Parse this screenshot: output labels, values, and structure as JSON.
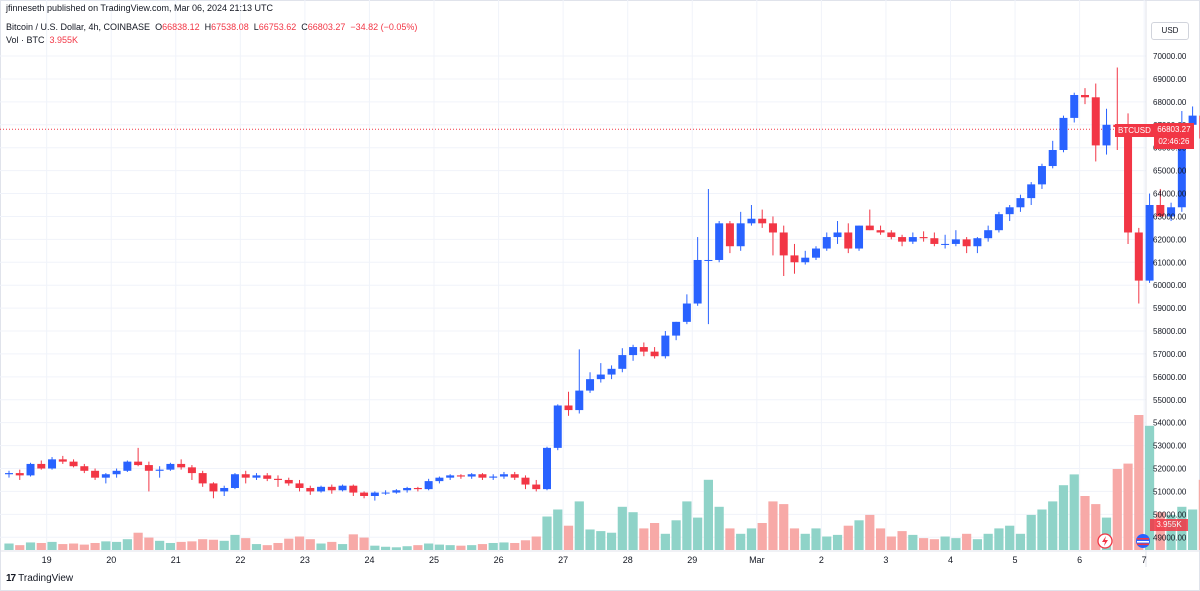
{
  "header": {
    "publisher": "jfinneseth published on TradingView.com, Mar 06, 2024 21:13 UTC",
    "symbol_line": "Bitcoin / U.S. Dollar, 4h, COINBASE",
    "open_label": "O",
    "open": "66838.12",
    "high_label": "H",
    "high": "67538.08",
    "low_label": "L",
    "low": "66753.62",
    "close_label": "C",
    "close": "66803.27",
    "change": "−34.82 (−0.05%)",
    "vol_label": "Vol · BTC",
    "vol_value": "3.955K"
  },
  "currency_button": "USD",
  "price_tag": {
    "symbol": "BTCUSD",
    "price": "66803.27",
    "countdown": "02:46:26"
  },
  "volume_tag": "3.955K",
  "footer": {
    "brand": "TradingView"
  },
  "colors": {
    "up": "#2962ff",
    "down": "#f23645",
    "vol_up": "#8fd3c8",
    "vol_down": "#f7a9a7"
  },
  "chart_data": {
    "type": "candlestick",
    "interval": "4h",
    "ylim": [
      48400,
      70700
    ],
    "y_ticks": [
      49000,
      50000,
      51000,
      52000,
      53000,
      54000,
      55000,
      56000,
      57000,
      58000,
      59000,
      60000,
      61000,
      62000,
      63000,
      64000,
      65000,
      66000,
      67000,
      68000,
      69000,
      70000
    ],
    "y_tick_labels": [
      "49000.00",
      "50000.00",
      "51000.00",
      "52000.00",
      "53000.00",
      "54000.00",
      "55000.00",
      "56000.00",
      "57000.00",
      "58000.00",
      "59000.00",
      "60000.00",
      "61000.00",
      "62000.00",
      "63000.00",
      "64000.00",
      "65000.00",
      "66000.00",
      "67000.00",
      "68000.00",
      "69000.00",
      "70000.00"
    ],
    "x_labels": [
      {
        "label": "19",
        "bar": 3.5
      },
      {
        "label": "20",
        "bar": 9.5
      },
      {
        "label": "21",
        "bar": 15.5
      },
      {
        "label": "22",
        "bar": 21.5
      },
      {
        "label": "23",
        "bar": 27.5
      },
      {
        "label": "24",
        "bar": 33.5
      },
      {
        "label": "25",
        "bar": 39.5
      },
      {
        "label": "26",
        "bar": 45.5
      },
      {
        "label": "27",
        "bar": 51.5
      },
      {
        "label": "28",
        "bar": 57.5
      },
      {
        "label": "29",
        "bar": 63.5
      },
      {
        "label": "Mar",
        "bar": 69.5
      },
      {
        "label": "2",
        "bar": 75.5
      },
      {
        "label": "3",
        "bar": 81.5
      },
      {
        "label": "4",
        "bar": 87.5
      },
      {
        "label": "5",
        "bar": 93.5
      },
      {
        "label": "6",
        "bar": 99.5
      },
      {
        "label": "7",
        "bar": 105.5
      }
    ],
    "last_price": 66803.27,
    "candles": [
      [
        51750,
        51900,
        51600,
        51800,
        1200
      ],
      [
        51800,
        51950,
        51500,
        51700,
        900
      ],
      [
        51700,
        52250,
        51650,
        52200,
        1400
      ],
      [
        52200,
        52350,
        51950,
        52000,
        1300
      ],
      [
        52000,
        52500,
        51950,
        52400,
        1500
      ],
      [
        52400,
        52550,
        52200,
        52300,
        1100
      ],
      [
        52300,
        52400,
        52050,
        52100,
        1200
      ],
      [
        52100,
        52200,
        51800,
        51900,
        1000
      ],
      [
        51900,
        52000,
        51500,
        51600,
        1300
      ],
      [
        51600,
        51800,
        51350,
        51750,
        1600
      ],
      [
        51750,
        52000,
        51600,
        51900,
        1500
      ],
      [
        51900,
        52350,
        51850,
        52300,
        2000
      ],
      [
        52300,
        52900,
        52100,
        52150,
        3200
      ],
      [
        52150,
        52300,
        51000,
        51900,
        2300
      ],
      [
        51900,
        52100,
        51600,
        51950,
        1700
      ],
      [
        51950,
        52250,
        51900,
        52200,
        1300
      ],
      [
        52200,
        52400,
        51950,
        52050,
        1500
      ],
      [
        52050,
        52150,
        51500,
        51800,
        1600
      ],
      [
        51800,
        51900,
        51200,
        51350,
        2000
      ],
      [
        51350,
        51400,
        50700,
        51000,
        1900
      ],
      [
        51000,
        51250,
        50800,
        51150,
        1700
      ],
      [
        51150,
        51800,
        51100,
        51750,
        2800
      ],
      [
        51750,
        51900,
        51350,
        51600,
        2200
      ],
      [
        51600,
        51800,
        51500,
        51700,
        1100
      ],
      [
        51700,
        51800,
        51450,
        51550,
        900
      ],
      [
        51550,
        51700,
        51200,
        51500,
        1300
      ],
      [
        51500,
        51600,
        51250,
        51350,
        2100
      ],
      [
        51350,
        51500,
        51000,
        51150,
        2500
      ],
      [
        51150,
        51250,
        50850,
        51000,
        2000
      ],
      [
        51000,
        51250,
        50950,
        51200,
        1200
      ],
      [
        51200,
        51300,
        50900,
        51050,
        1500
      ],
      [
        51050,
        51300,
        51000,
        51250,
        1100
      ],
      [
        51250,
        51300,
        50800,
        50950,
        2900
      ],
      [
        50950,
        51000,
        50700,
        50800,
        2300
      ],
      [
        50800,
        51000,
        50600,
        50950,
        800
      ],
      [
        50950,
        51050,
        50850,
        50950,
        600
      ],
      [
        50950,
        51100,
        50900,
        51050,
        500
      ],
      [
        51050,
        51200,
        50950,
        51150,
        700
      ],
      [
        51150,
        51200,
        51000,
        51100,
        900
      ],
      [
        51100,
        51550,
        51050,
        51450,
        1200
      ],
      [
        51450,
        51650,
        51350,
        51600,
        1000
      ],
      [
        51600,
        51750,
        51500,
        51700,
        900
      ],
      [
        51700,
        51750,
        51550,
        51650,
        800
      ],
      [
        51650,
        51800,
        51550,
        51750,
        900
      ],
      [
        51750,
        51800,
        51500,
        51600,
        1100
      ],
      [
        51600,
        51750,
        51500,
        51650,
        1300
      ],
      [
        51650,
        51850,
        51550,
        51750,
        1400
      ],
      [
        51750,
        51850,
        51500,
        51600,
        1300
      ],
      [
        51600,
        51700,
        51100,
        51300,
        1800
      ],
      [
        51300,
        51500,
        51000,
        51100,
        2500
      ],
      [
        51100,
        52950,
        51050,
        52900,
        6200
      ],
      [
        52900,
        54800,
        52800,
        54750,
        7500
      ],
      [
        54750,
        55350,
        54300,
        54550,
        4500
      ],
      [
        54550,
        57200,
        54400,
        55400,
        9000
      ],
      [
        55400,
        56200,
        55300,
        55900,
        3800
      ],
      [
        55900,
        56600,
        55750,
        56100,
        3500
      ],
      [
        56100,
        56500,
        55900,
        56350,
        3200
      ],
      [
        56350,
        57250,
        56200,
        56950,
        8000
      ],
      [
        56950,
        57400,
        56700,
        57300,
        7000
      ],
      [
        57300,
        57500,
        56900,
        57100,
        4000
      ],
      [
        57100,
        57300,
        56800,
        56900,
        5000
      ],
      [
        56900,
        58000,
        56800,
        57800,
        3000
      ],
      [
        57800,
        58400,
        57600,
        58400,
        5500
      ],
      [
        58400,
        59600,
        58300,
        59200,
        9000
      ],
      [
        59200,
        62100,
        59100,
        61100,
        6000
      ],
      [
        61100,
        64200,
        58300,
        61100,
        13000
      ],
      [
        61100,
        62800,
        61000,
        62700,
        8000
      ],
      [
        62700,
        62800,
        61400,
        61700,
        4000
      ],
      [
        61700,
        63200,
        61500,
        62700,
        3000
      ],
      [
        62700,
        63500,
        62600,
        62900,
        4000
      ],
      [
        62900,
        63300,
        62500,
        62700,
        5000
      ],
      [
        62700,
        63000,
        61300,
        62300,
        9000
      ],
      [
        62300,
        62600,
        60400,
        61300,
        8500
      ],
      [
        61300,
        61800,
        60500,
        61000,
        4000
      ],
      [
        61000,
        61500,
        60900,
        61200,
        3000
      ],
      [
        61200,
        61700,
        61100,
        61600,
        4000
      ],
      [
        61600,
        62300,
        61500,
        62100,
        2500
      ],
      [
        62100,
        62800,
        61800,
        62300,
        2800
      ],
      [
        62300,
        62700,
        61400,
        61600,
        4500
      ],
      [
        61600,
        62600,
        61500,
        62600,
        5500
      ],
      [
        62600,
        63300,
        62400,
        62400,
        6500
      ],
      [
        62400,
        62600,
        62200,
        62300,
        4000
      ],
      [
        62300,
        62400,
        62000,
        62100,
        2500
      ],
      [
        62100,
        62200,
        61700,
        61900,
        3500
      ],
      [
        61900,
        62300,
        61800,
        62100,
        2800
      ],
      [
        62100,
        62350,
        61900,
        62050,
        2200
      ],
      [
        62050,
        62300,
        61700,
        61800,
        2000
      ],
      [
        61800,
        62200,
        61600,
        61800,
        2500
      ],
      [
        61800,
        62400,
        61700,
        62000,
        2200
      ],
      [
        62000,
        62100,
        61400,
        61700,
        3000
      ],
      [
        61700,
        62100,
        61400,
        62050,
        2000
      ],
      [
        62050,
        62600,
        61900,
        62400,
        3000
      ],
      [
        62400,
        63200,
        62300,
        63100,
        4000
      ],
      [
        63100,
        63500,
        62800,
        63400,
        4500
      ],
      [
        63400,
        63950,
        63200,
        63800,
        3000
      ],
      [
        63800,
        64500,
        63500,
        64400,
        6500
      ],
      [
        64400,
        65300,
        64200,
        65200,
        7500
      ],
      [
        65200,
        66300,
        65100,
        65900,
        9000
      ],
      [
        65900,
        67400,
        65800,
        67300,
        12000
      ],
      [
        67300,
        68400,
        67100,
        68300,
        14000
      ],
      [
        68300,
        68600,
        67900,
        68200,
        10000
      ],
      [
        68200,
        68800,
        65400,
        66100,
        8500
      ],
      [
        66100,
        67700,
        65700,
        67000,
        6000
      ],
      [
        67000,
        69500,
        65900,
        66900,
        15000
      ],
      [
        66900,
        67500,
        61800,
        62300,
        16000
      ],
      [
        62300,
        62500,
        59200,
        60200,
        25000
      ],
      [
        60200,
        64000,
        60100,
        63500,
        23000
      ],
      [
        63500,
        64200,
        63000,
        63000,
        7000
      ],
      [
        63000,
        63600,
        62800,
        63400,
        6500
      ],
      [
        63400,
        67600,
        63200,
        67000,
        8000
      ],
      [
        67000,
        67800,
        66500,
        67400,
        7500
      ],
      [
        67400,
        67900,
        64700,
        66400,
        13000
      ],
      [
        66400,
        67500,
        66200,
        66800,
        8000
      ],
      [
        66838.12,
        67538.08,
        66753.62,
        66803.27,
        3955
      ]
    ]
  }
}
